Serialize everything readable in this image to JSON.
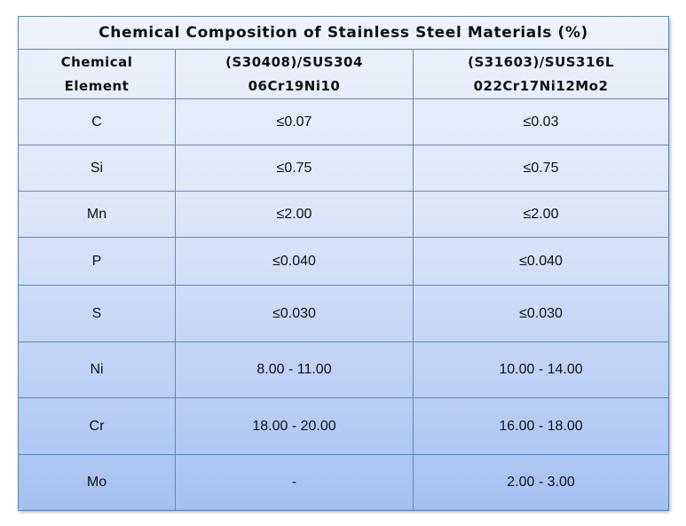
{
  "table": {
    "title": "Chemical Composition of Stainless Steel Materials (%)",
    "header": {
      "col1_line1": "Chemical",
      "col1_line2": "Element",
      "col2_line1": "(S30408)/SUS304",
      "col2_line2": "06Cr19Ni10",
      "col3_line1": "(S31603)/SUS316L",
      "col3_line2": "022Cr17Ni12Mo2"
    },
    "rows": [
      {
        "element": "C",
        "sus304": "≤0.07",
        "sus316l": "≤0.03"
      },
      {
        "element": "Si",
        "sus304": "≤0.75",
        "sus316l": "≤0.75"
      },
      {
        "element": "Mn",
        "sus304": "≤2.00",
        "sus316l": "≤2.00"
      },
      {
        "element": "P",
        "sus304": "≤0.040",
        "sus316l": "≤0.040"
      },
      {
        "element": "S",
        "sus304": "≤0.030",
        "sus316l": "≤0.030"
      },
      {
        "element": "Ni",
        "sus304": "8.00 - 11.00",
        "sus316l": "10.00 - 14.00"
      },
      {
        "element": "Cr",
        "sus304": "18.00 - 20.00",
        "sus316l": "16.00 - 18.00"
      },
      {
        "element": "Mo",
        "sus304": "-",
        "sus316l": "2.00 - 3.00"
      }
    ],
    "colors": {
      "border": "#5f86b8",
      "gradient_top": "#eef3fc",
      "gradient_bottom": "#a4c0f1"
    }
  }
}
